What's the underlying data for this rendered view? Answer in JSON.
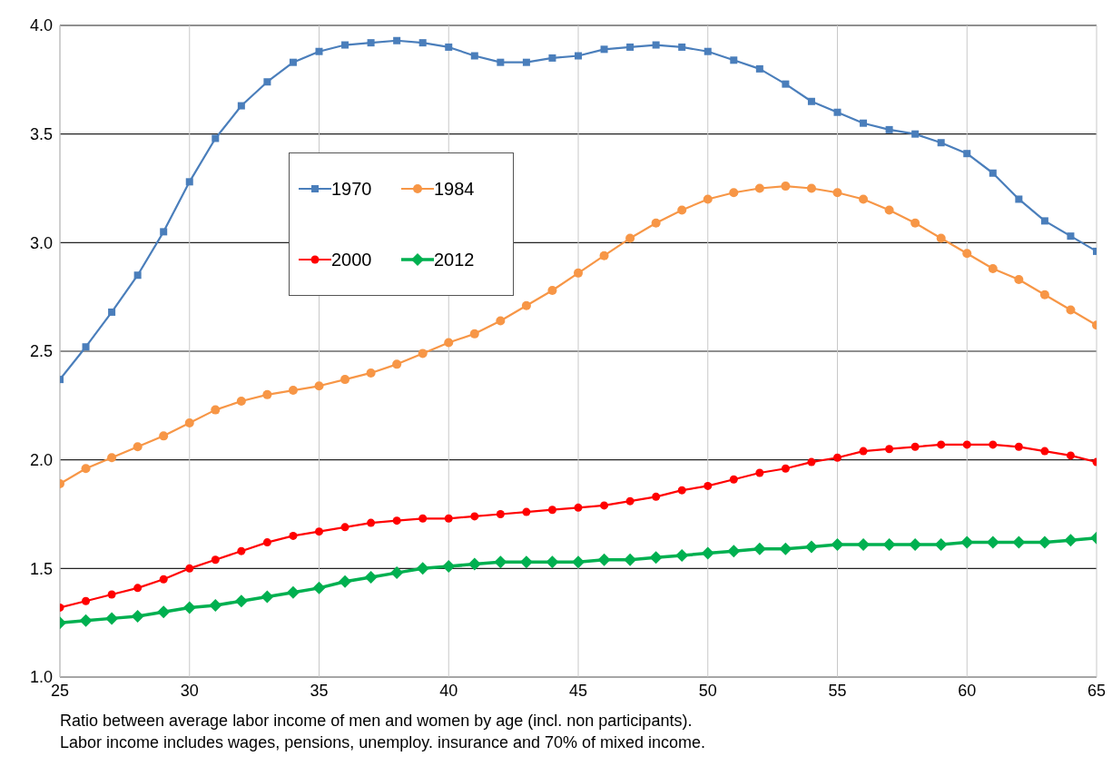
{
  "chart_data": {
    "type": "line",
    "x": [
      25,
      26,
      27,
      28,
      29,
      30,
      31,
      32,
      33,
      34,
      35,
      36,
      37,
      38,
      39,
      40,
      41,
      42,
      43,
      44,
      45,
      46,
      47,
      48,
      49,
      50,
      51,
      52,
      53,
      54,
      55,
      56,
      57,
      58,
      59,
      60,
      61,
      62,
      63,
      64,
      65
    ],
    "series": [
      {
        "name": "1970",
        "color": "#4a7ebb",
        "marker": "square",
        "values": [
          2.37,
          2.52,
          2.68,
          2.85,
          3.05,
          3.28,
          3.48,
          3.63,
          3.74,
          3.83,
          3.88,
          3.91,
          3.92,
          3.93,
          3.92,
          3.9,
          3.86,
          3.83,
          3.83,
          3.85,
          3.86,
          3.89,
          3.9,
          3.91,
          3.9,
          3.88,
          3.84,
          3.8,
          3.73,
          3.65,
          3.6,
          3.55,
          3.52,
          3.5,
          3.46,
          3.41,
          3.32,
          3.2,
          3.1,
          3.03,
          2.96
        ]
      },
      {
        "name": "1984",
        "color": "#f79646",
        "marker": "circle",
        "values": [
          1.89,
          1.96,
          2.01,
          2.06,
          2.11,
          2.17,
          2.23,
          2.27,
          2.3,
          2.32,
          2.34,
          2.37,
          2.4,
          2.44,
          2.49,
          2.54,
          2.58,
          2.64,
          2.71,
          2.78,
          2.86,
          2.94,
          3.02,
          3.09,
          3.15,
          3.2,
          3.23,
          3.25,
          3.26,
          3.25,
          3.23,
          3.2,
          3.15,
          3.09,
          3.02,
          2.95,
          2.88,
          2.83,
          2.76,
          2.69,
          2.62
        ]
      },
      {
        "name": "2000",
        "color": "#ff0000",
        "marker": "circle",
        "values": [
          1.32,
          1.35,
          1.38,
          1.41,
          1.45,
          1.5,
          1.54,
          1.58,
          1.62,
          1.65,
          1.67,
          1.69,
          1.71,
          1.72,
          1.73,
          1.73,
          1.74,
          1.75,
          1.76,
          1.77,
          1.78,
          1.79,
          1.81,
          1.83,
          1.86,
          1.88,
          1.91,
          1.94,
          1.96,
          1.99,
          2.01,
          2.04,
          2.05,
          2.06,
          2.07,
          2.07,
          2.07,
          2.06,
          2.04,
          2.02,
          1.99
        ]
      },
      {
        "name": "2012",
        "color": "#00b050",
        "marker": "diamond",
        "values": [
          1.25,
          1.26,
          1.27,
          1.28,
          1.3,
          1.32,
          1.33,
          1.35,
          1.37,
          1.39,
          1.41,
          1.44,
          1.46,
          1.48,
          1.5,
          1.51,
          1.52,
          1.53,
          1.53,
          1.53,
          1.53,
          1.54,
          1.54,
          1.55,
          1.56,
          1.57,
          1.58,
          1.59,
          1.59,
          1.6,
          1.61,
          1.61,
          1.61,
          1.61,
          1.61,
          1.62,
          1.62,
          1.62,
          1.62,
          1.63,
          1.64
        ]
      }
    ],
    "xlim": [
      25,
      65
    ],
    "xticks": [
      25,
      30,
      35,
      40,
      45,
      50,
      55,
      60,
      65
    ],
    "ylim": [
      1.0,
      4.0
    ],
    "yticks": [
      {
        "value": 1,
        "label": "1.0"
      },
      1.5,
      {
        "value": 2,
        "label": "2.0"
      },
      2.5,
      {
        "value": 3,
        "label": "3.0"
      },
      3.5,
      {
        "value": 4,
        "label": "4.0"
      }
    ],
    "grid": true,
    "legend": "top left",
    "line_style": "solid",
    "annotations": [
      "Ratio between average labor income of men and women by age (incl. non participants).",
      "Labor income includes wages, pensions, unemploy. insurance and 70% of mixed income."
    ]
  }
}
